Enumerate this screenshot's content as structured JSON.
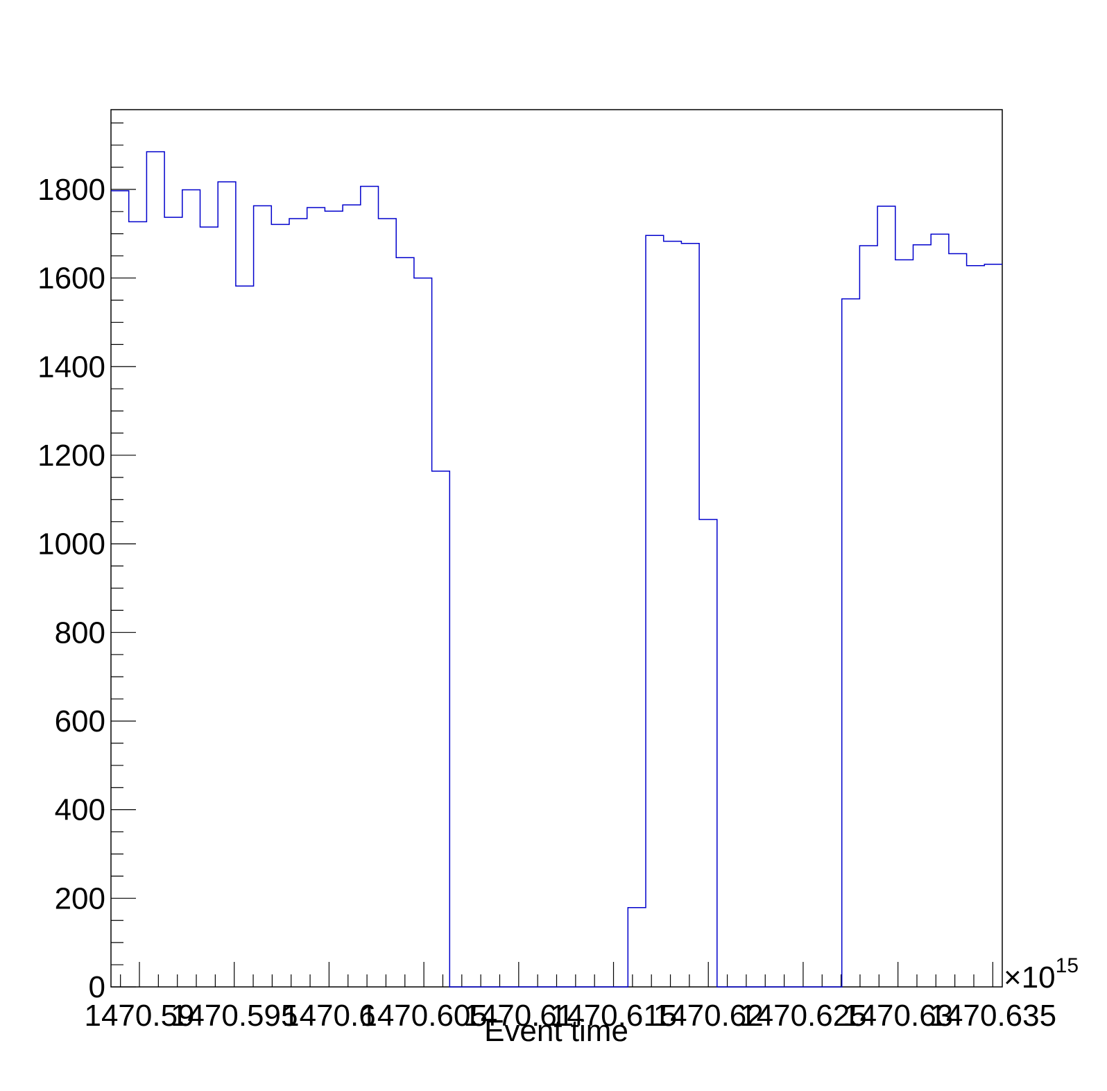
{
  "chart_data": {
    "type": "histogram",
    "xlabel": "Event time",
    "ylabel": "",
    "x_multiplier": "×10",
    "x_exponent": "15",
    "xlim": [
      1470.5885,
      1470.6355
    ],
    "ylim": [
      0,
      1980
    ],
    "y_ticks": [
      0,
      200,
      400,
      600,
      800,
      1000,
      1200,
      1400,
      1600,
      1800
    ],
    "y_tick_labels": [
      "0",
      "200",
      "400",
      "600",
      "800",
      "1000",
      "1200",
      "1400",
      "1600",
      "1800"
    ],
    "x_ticks": [
      1470.59,
      1470.595,
      1470.6,
      1470.605,
      1470.61,
      1470.615,
      1470.62,
      1470.625,
      1470.63,
      1470.635
    ],
    "x_tick_labels": [
      "1470.59",
      "1470.595",
      "1470.6",
      "1470.605",
      "1470.61",
      "1470.615",
      "1470.62",
      "1470.625",
      "1470.63",
      "1470.635"
    ],
    "grid": false,
    "bin_edges_start": 1470.5885,
    "bin_width": 0.00094,
    "values": [
      1797,
      1727,
      1885,
      1737,
      1799,
      1715,
      1817,
      1582,
      1763,
      1721,
      1734,
      1759,
      1751,
      1765,
      1807,
      1734,
      1646,
      1600,
      1164,
      0,
      0,
      0,
      0,
      0,
      0,
      0,
      0,
      0,
      0,
      179,
      1696,
      1683,
      1678,
      1055,
      0,
      0,
      0,
      0,
      0,
      0,
      0,
      1553,
      1673,
      1762,
      1641,
      1675,
      1699,
      1655,
      1628,
      1631
    ],
    "line_color": "#0000cc",
    "frame_color": "#000000"
  }
}
